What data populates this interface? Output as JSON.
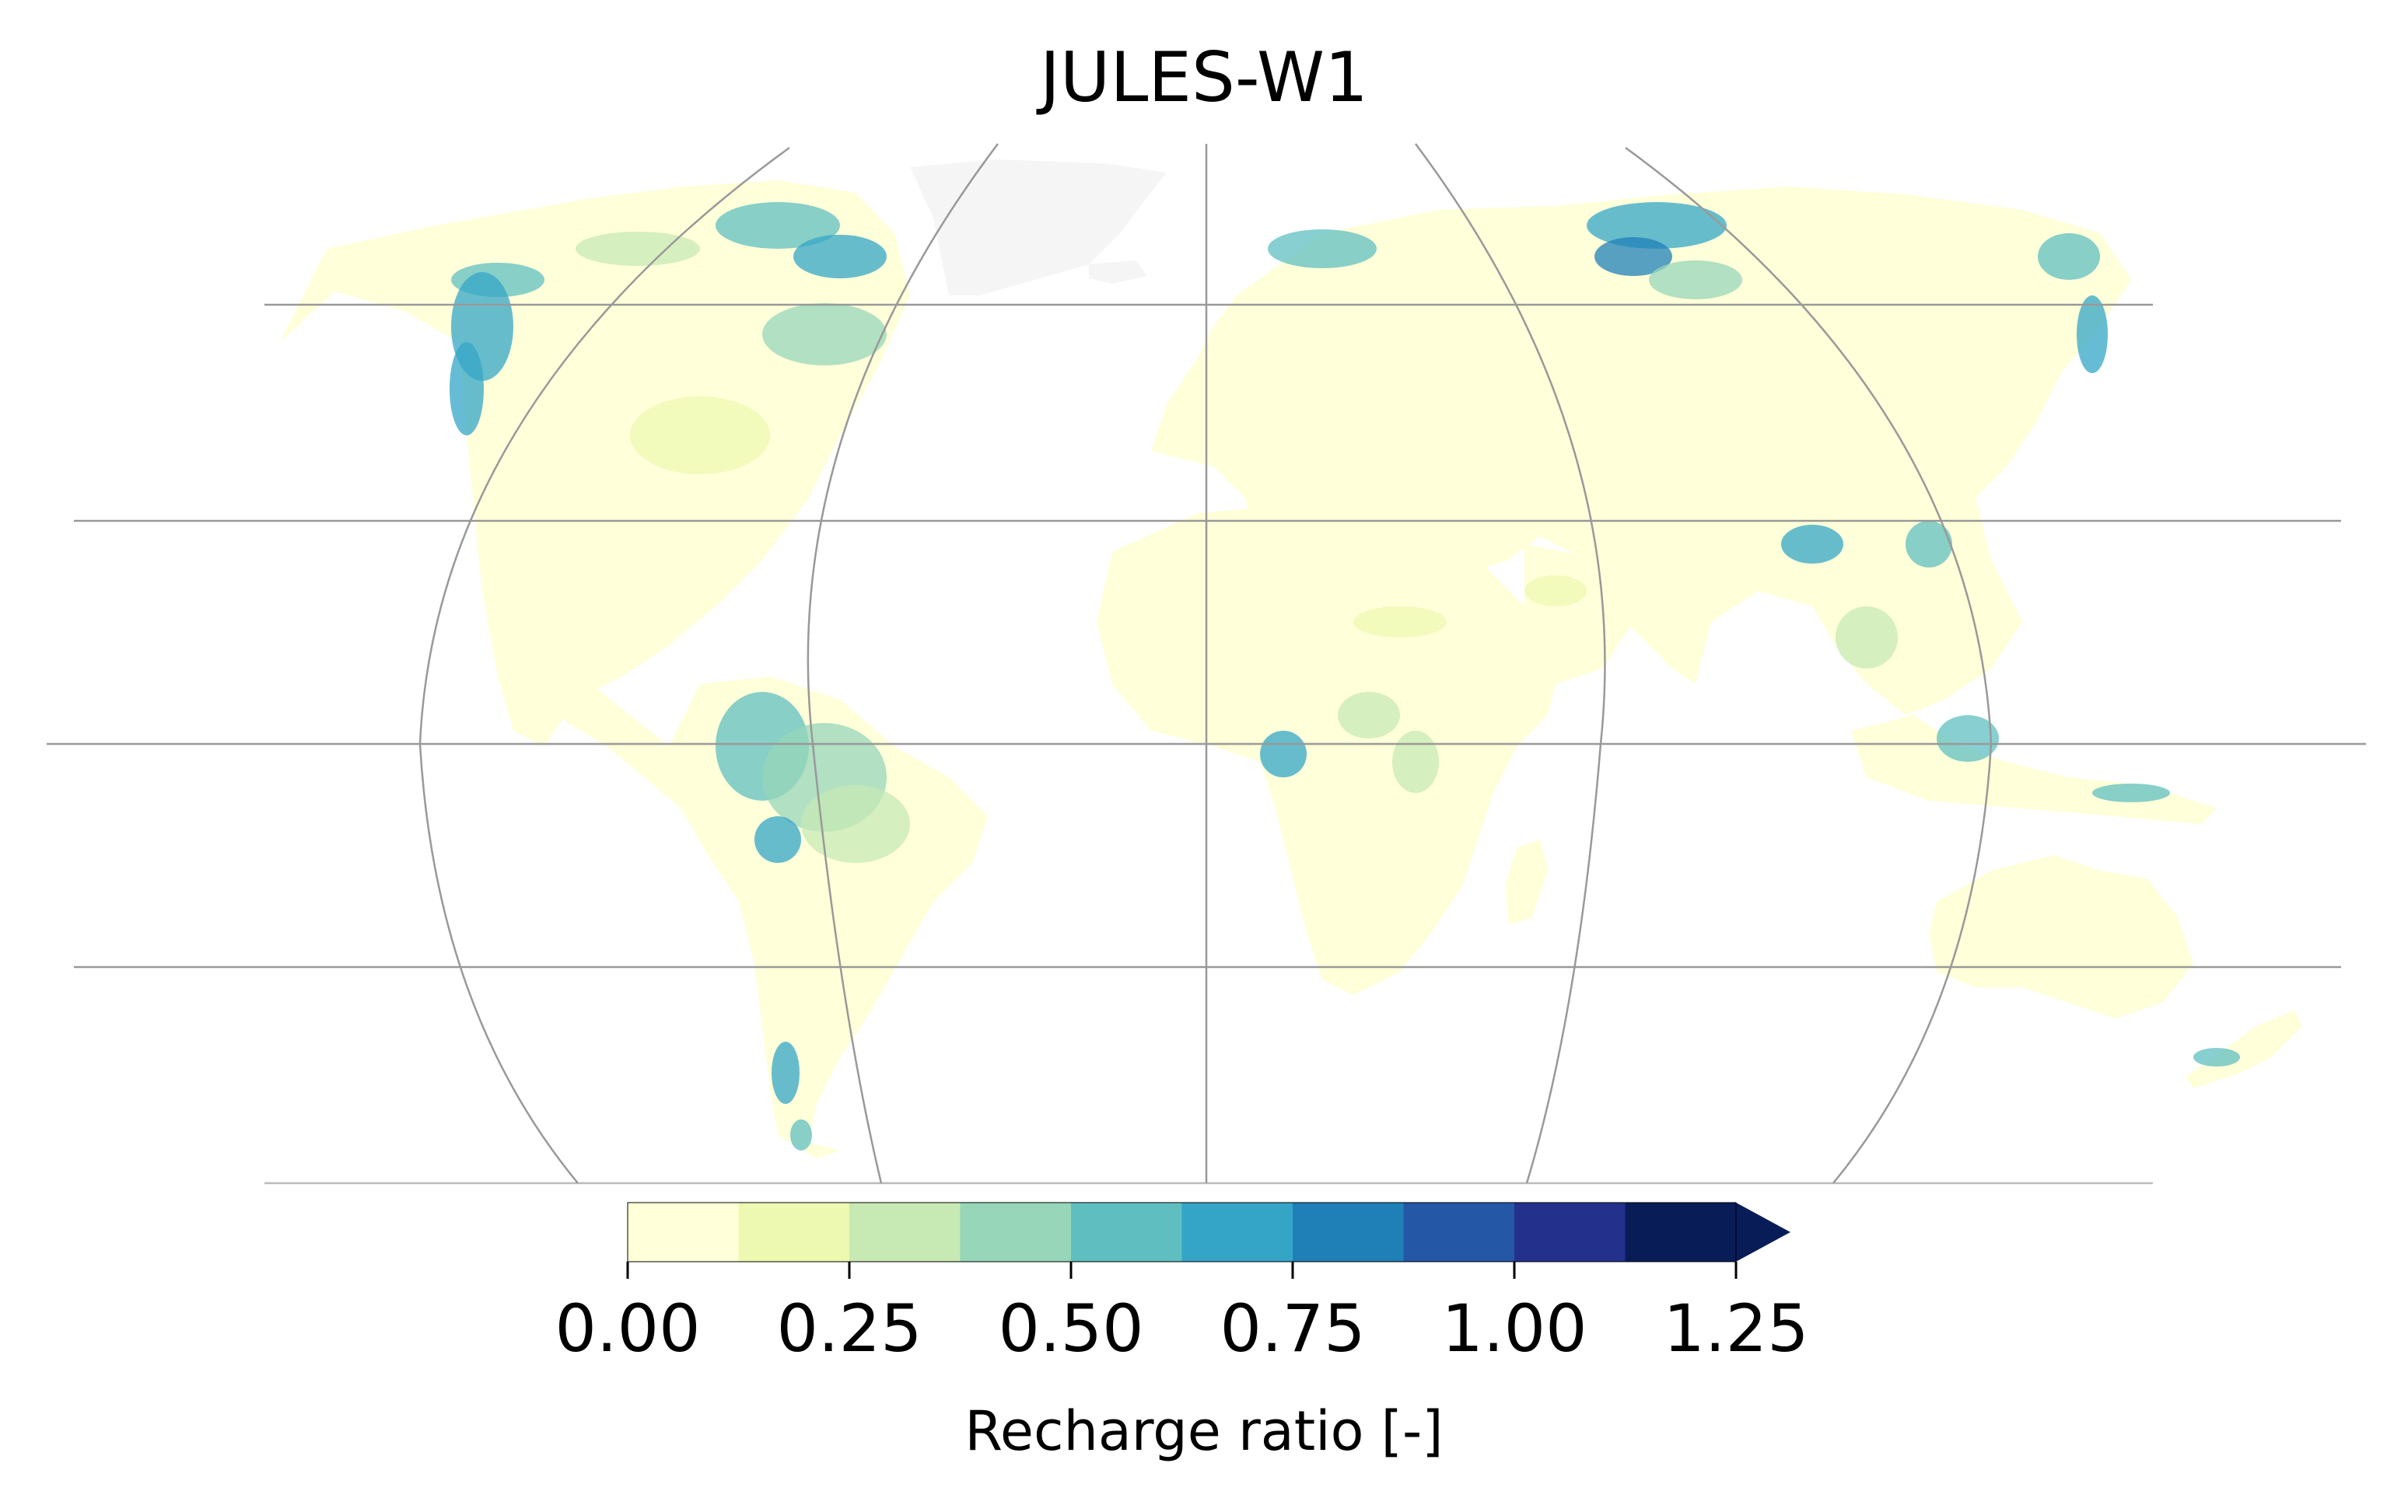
{
  "title": "JULES-W1",
  "colorbar": {
    "label": "Recharge ratio [-]",
    "tick_labels": [
      "0.00",
      "0.25",
      "0.50",
      "0.75",
      "1.00",
      "1.25"
    ],
    "ticks": [
      0.0,
      0.25,
      0.5,
      0.75,
      1.0,
      1.25
    ],
    "bounds": [
      0.0,
      0.125,
      0.25,
      0.375,
      0.5,
      0.625,
      0.75,
      0.875,
      1.0,
      1.125,
      1.25
    ],
    "colors": [
      "#ffffd9",
      "#edf8b1",
      "#c7e9b4",
      "#97d6b9",
      "#5fbfc0",
      "#34a5c7",
      "#1f80b8",
      "#2458a6",
      "#23318c",
      "#081d58"
    ],
    "extend": "max"
  },
  "map": {
    "projection": "Robinson-like",
    "land_color": "#ffffd9",
    "ice_color": "#f5f5f5",
    "gridline_color": "#999999"
  }
}
